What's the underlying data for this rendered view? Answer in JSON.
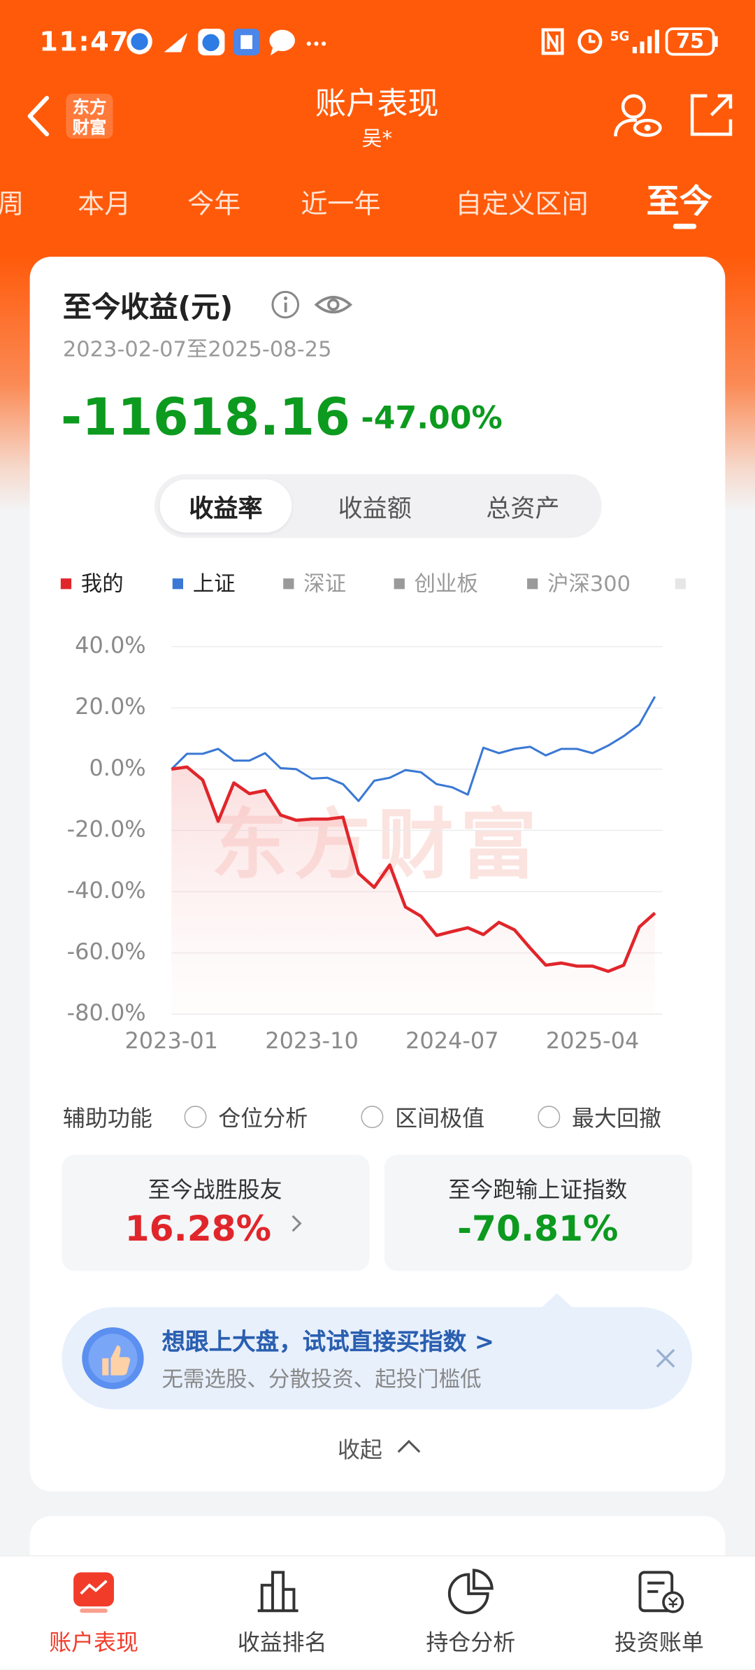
{
  "status_bar": {
    "time": "11:47",
    "network": "5G",
    "battery": "75"
  },
  "header": {
    "logo_lines": [
      "东方",
      "财富"
    ],
    "title": "账户表现",
    "subtitle": "吴*"
  },
  "tabs": {
    "items": [
      "周",
      "本月",
      "今年",
      "近一年",
      "自定义区间",
      "至今"
    ],
    "active": 5
  },
  "summary": {
    "title": "至今收益(元)",
    "period": "2023-02-07至2025-08-25",
    "amount": "-11618.16",
    "percent": "-47.00%"
  },
  "segments": {
    "items": [
      "收益率",
      "收益额",
      "总资产"
    ],
    "active": 0
  },
  "chart_data": {
    "type": "line",
    "watermark": "东方财富",
    "legend_inactive": [
      "深证",
      "创业板",
      "沪深300"
    ],
    "x": [
      "2023-01",
      "2023-02",
      "2023-03",
      "2023-04",
      "2023-05",
      "2023-06",
      "2023-07",
      "2023-08",
      "2023-09",
      "2023-10",
      "2023-11",
      "2023-12",
      "2024-01",
      "2024-02",
      "2024-03",
      "2024-04",
      "2024-05",
      "2024-06",
      "2024-07",
      "2024-08",
      "2024-09",
      "2024-10",
      "2024-11",
      "2024-12",
      "2025-01",
      "2025-02",
      "2025-03",
      "2025-04",
      "2025-05",
      "2025-06",
      "2025-07",
      "2025-08"
    ],
    "series": [
      {
        "name": "我的",
        "color": "#e0262b",
        "values": [
          0,
          0.7,
          -3.5,
          -17,
          -4.5,
          -8,
          -7,
          -15,
          -16.7,
          -16.3,
          -16.3,
          -15.7,
          -34,
          -38.6,
          -31.3,
          -45,
          -48,
          -54.3,
          -53,
          -51.8,
          -54,
          -50,
          -52.5,
          -58.4,
          -64,
          -63.3,
          -64.3,
          -64.3,
          -66,
          -64,
          -51.5,
          -47
        ]
      },
      {
        "name": "上证",
        "color": "#3a78d4",
        "values": [
          0,
          5,
          5,
          6.6,
          2.8,
          2.8,
          5.2,
          0.3,
          0,
          -3.1,
          -2.8,
          -4.9,
          -10.4,
          -3.8,
          -2.8,
          -0.3,
          -1,
          -4.9,
          -5.9,
          -8.3,
          7,
          5.2,
          6.6,
          7.3,
          4.5,
          6.6,
          6.6,
          5.2,
          7.7,
          10.8,
          14.6,
          23.7
        ]
      }
    ],
    "xlim": [
      "2023-01",
      "2025-08"
    ],
    "xticks": [
      "2023-01",
      "2023-10",
      "2024-07",
      "2025-04"
    ],
    "ylim": [
      -80,
      40
    ],
    "yticks": [
      {
        "value": 40,
        "label": "40.0%"
      },
      {
        "value": 20,
        "label": "20.0%"
      },
      {
        "value": 0,
        "label": "0.0%"
      },
      {
        "value": -20,
        "label": "-20.0%"
      },
      {
        "value": -40,
        "label": "-40.0%"
      },
      {
        "value": -60,
        "label": "-60.0%"
      },
      {
        "value": -80,
        "label": "-80.0%"
      }
    ],
    "grid": true
  },
  "aux": {
    "label": "辅助功能",
    "options": [
      "仓位分析",
      "区间极值",
      "最大回撤"
    ]
  },
  "stats": [
    {
      "label": "至今战胜股友",
      "value": "16.28%"
    },
    {
      "label": "至今跑输上证指数",
      "value": "-70.81%"
    }
  ],
  "promo": {
    "title": "想跟上大盘，试试直接买指数 >",
    "subtitle": "无需选股、分散投资、起投门槛低"
  },
  "collapse": "收起",
  "bottom_nav": {
    "items": [
      "账户表现",
      "收益排名",
      "持仓分析",
      "投资账单"
    ],
    "active": 0
  }
}
